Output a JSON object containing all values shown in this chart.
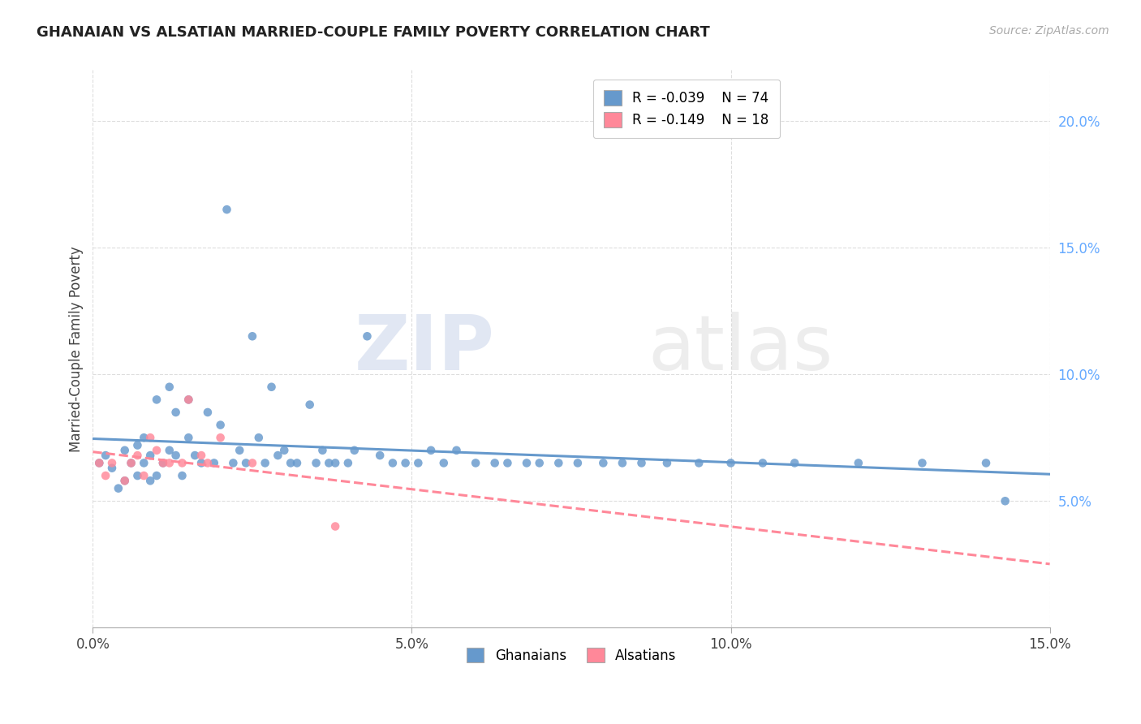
{
  "title": "GHANAIAN VS ALSATIAN MARRIED-COUPLE FAMILY POVERTY CORRELATION CHART",
  "source": "Source: ZipAtlas.com",
  "ylabel_label": "Married-Couple Family Poverty",
  "xlim": [
    0.0,
    0.15
  ],
  "ylim": [
    0.0,
    0.22
  ],
  "ghanaian_color": "#6699cc",
  "alsatian_color": "#ff8899",
  "legend_r_ghanaian": "R = -0.039",
  "legend_n_ghanaian": "N = 74",
  "legend_r_alsatian": "R = -0.149",
  "legend_n_alsatian": "N = 18",
  "watermark_zip": "ZIP",
  "watermark_atlas": "atlas",
  "background_color": "#ffffff",
  "grid_color": "#dddddd",
  "ytick_color": "#66aaff",
  "ghanaian_x": [
    0.001,
    0.002,
    0.003,
    0.004,
    0.005,
    0.005,
    0.006,
    0.007,
    0.007,
    0.008,
    0.008,
    0.009,
    0.009,
    0.01,
    0.01,
    0.011,
    0.012,
    0.012,
    0.013,
    0.013,
    0.014,
    0.015,
    0.015,
    0.016,
    0.017,
    0.018,
    0.019,
    0.02,
    0.021,
    0.022,
    0.023,
    0.024,
    0.025,
    0.026,
    0.027,
    0.028,
    0.029,
    0.03,
    0.031,
    0.032,
    0.034,
    0.035,
    0.036,
    0.037,
    0.038,
    0.04,
    0.041,
    0.043,
    0.045,
    0.047,
    0.049,
    0.051,
    0.053,
    0.055,
    0.057,
    0.06,
    0.063,
    0.065,
    0.068,
    0.07,
    0.073,
    0.076,
    0.08,
    0.083,
    0.086,
    0.09,
    0.095,
    0.1,
    0.105,
    0.11,
    0.12,
    0.13,
    0.14,
    0.143
  ],
  "ghanaian_y": [
    0.065,
    0.068,
    0.063,
    0.055,
    0.07,
    0.058,
    0.065,
    0.06,
    0.072,
    0.065,
    0.075,
    0.058,
    0.068,
    0.06,
    0.09,
    0.065,
    0.095,
    0.07,
    0.068,
    0.085,
    0.06,
    0.075,
    0.09,
    0.068,
    0.065,
    0.085,
    0.065,
    0.08,
    0.165,
    0.065,
    0.07,
    0.065,
    0.115,
    0.075,
    0.065,
    0.095,
    0.068,
    0.07,
    0.065,
    0.065,
    0.088,
    0.065,
    0.07,
    0.065,
    0.065,
    0.065,
    0.07,
    0.115,
    0.068,
    0.065,
    0.065,
    0.065,
    0.07,
    0.065,
    0.07,
    0.065,
    0.065,
    0.065,
    0.065,
    0.065,
    0.065,
    0.065,
    0.065,
    0.065,
    0.065,
    0.065,
    0.065,
    0.065,
    0.065,
    0.065,
    0.065,
    0.065,
    0.065,
    0.05
  ],
  "alsatian_x": [
    0.001,
    0.002,
    0.003,
    0.005,
    0.006,
    0.007,
    0.008,
    0.009,
    0.01,
    0.011,
    0.012,
    0.014,
    0.015,
    0.017,
    0.018,
    0.02,
    0.025,
    0.038
  ],
  "alsatian_y": [
    0.065,
    0.06,
    0.065,
    0.058,
    0.065,
    0.068,
    0.06,
    0.075,
    0.07,
    0.065,
    0.065,
    0.065,
    0.09,
    0.068,
    0.065,
    0.075,
    0.065,
    0.04
  ]
}
